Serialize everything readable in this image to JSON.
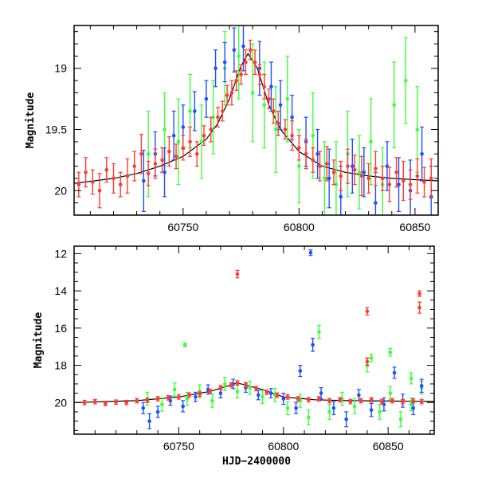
{
  "chart_data": [
    {
      "type": "scatter",
      "panel": "top",
      "title": "",
      "xlabel": "",
      "ylabel": "Magnitude",
      "xlim": [
        60703,
        60860
      ],
      "ylim": [
        20.2,
        18.65
      ],
      "y_inverted": true,
      "x_ticks": [
        60750,
        60800,
        60850
      ],
      "y_ticks": [
        19,
        19.5,
        20
      ],
      "x_tick_labels": [
        "60750",
        "60800",
        "60850"
      ],
      "y_tick_labels": [
        "19",
        "19.5",
        "20"
      ],
      "grid": false,
      "legend": "none",
      "colors": {
        "red": "#ff3b30",
        "blue": "#1f4fff",
        "green": "#3dff3d",
        "model": "#000000"
      },
      "model_curve": {
        "x": [
          60703,
          60720,
          60730,
          60740,
          60750,
          60760,
          60765,
          60770,
          60775,
          60778,
          60782,
          60787,
          60792,
          60800,
          60810,
          60820,
          60830,
          60840,
          60850,
          60860
        ],
        "y": [
          19.94,
          19.9,
          19.86,
          19.8,
          19.72,
          19.58,
          19.45,
          19.25,
          18.98,
          18.88,
          19.0,
          19.3,
          19.5,
          19.68,
          19.8,
          19.85,
          19.88,
          19.9,
          19.91,
          19.92
        ]
      },
      "series": [
        {
          "color": "red",
          "x": [
            60705,
            60708,
            60711,
            60714,
            60717,
            60720,
            60723,
            60726,
            60729,
            60732,
            60735,
            60738,
            60741,
            60744,
            60747,
            60750,
            60753,
            60756,
            60759,
            60762,
            60765,
            60767,
            60769,
            60771,
            60773,
            60775,
            60777,
            60779,
            60781,
            60783,
            60785,
            60787,
            60789,
            60791,
            60794,
            60797,
            60800,
            60803,
            60806,
            60809,
            60812,
            60815,
            60818,
            60821,
            60824,
            60827,
            60830,
            60833,
            60836,
            60839,
            60842,
            60845,
            60848,
            60851,
            60854,
            60857
          ],
          "y": [
            19.95,
            19.85,
            19.93,
            20.0,
            19.83,
            19.9,
            19.95,
            19.88,
            19.8,
            19.7,
            19.86,
            19.78,
            19.75,
            19.68,
            19.72,
            19.65,
            19.6,
            19.7,
            19.55,
            19.5,
            19.4,
            19.35,
            19.22,
            19.2,
            19.1,
            19.05,
            18.95,
            18.85,
            18.95,
            19.05,
            19.15,
            19.25,
            19.35,
            19.45,
            19.5,
            19.55,
            19.65,
            19.7,
            19.75,
            19.8,
            19.78,
            19.85,
            19.88,
            19.8,
            19.83,
            19.88,
            19.9,
            19.82,
            19.9,
            19.95,
            19.85,
            19.92,
            19.95,
            19.88,
            19.93,
            19.9
          ],
          "err": [
            0.1,
            0.12,
            0.1,
            0.14,
            0.1,
            0.12,
            0.1,
            0.14,
            0.12,
            0.16,
            0.1,
            0.12,
            0.1,
            0.12,
            0.1,
            0.1,
            0.12,
            0.1,
            0.08,
            0.1,
            0.08,
            0.08,
            0.08,
            0.1,
            0.08,
            0.08,
            0.1,
            0.08,
            0.1,
            0.08,
            0.1,
            0.08,
            0.1,
            0.1,
            0.08,
            0.12,
            0.1,
            0.12,
            0.1,
            0.12,
            0.14,
            0.1,
            0.12,
            0.14,
            0.12,
            0.16,
            0.12,
            0.14,
            0.1,
            0.14,
            0.12,
            0.16,
            0.12,
            0.14,
            0.12,
            0.16
          ]
        },
        {
          "color": "blue",
          "x": [
            60733,
            60738,
            60742,
            60746,
            60750,
            60755,
            60760,
            60764,
            60768,
            60772,
            60776,
            60783,
            60788,
            60792,
            60797,
            60803,
            60808,
            60813,
            60818,
            60823,
            60828,
            60833,
            60838,
            60843,
            60848,
            60853,
            60857
          ],
          "y": [
            19.92,
            19.7,
            19.85,
            19.55,
            19.48,
            19.35,
            19.25,
            19.0,
            18.95,
            18.85,
            18.82,
            19.0,
            19.15,
            19.3,
            19.4,
            19.6,
            19.7,
            19.9,
            20.05,
            19.8,
            19.85,
            20.1,
            19.8,
            19.95,
            20.0,
            19.7,
            20.05
          ],
          "err": [
            0.25,
            0.18,
            0.2,
            0.2,
            0.18,
            0.16,
            0.15,
            0.15,
            0.16,
            0.18,
            0.2,
            0.22,
            0.2,
            0.2,
            0.18,
            0.2,
            0.2,
            0.24,
            0.25,
            0.22,
            0.2,
            0.25,
            0.2,
            0.22,
            0.25,
            0.22,
            0.25
          ]
        },
        {
          "color": "green",
          "x": [
            60735,
            60742,
            60748,
            60753,
            60758,
            60763,
            60768,
            60774,
            60780,
            60785,
            60790,
            60795,
            60800,
            60806,
            60811,
            60816,
            60821,
            60826,
            60831,
            60836,
            60841,
            60846,
            60851
          ],
          "y": [
            19.7,
            19.5,
            19.6,
            19.35,
            19.6,
            19.4,
            19.0,
            18.9,
            19.2,
            19.3,
            19.5,
            19.25,
            19.8,
            19.55,
            19.9,
            19.95,
            19.7,
            19.85,
            19.6,
            19.95,
            19.3,
            19.1,
            19.5
          ],
          "err": [
            0.35,
            0.3,
            0.35,
            0.3,
            0.3,
            0.3,
            0.3,
            0.35,
            0.4,
            0.35,
            0.35,
            0.35,
            0.3,
            0.35,
            0.3,
            0.35,
            0.35,
            0.3,
            0.35,
            0.3,
            0.35,
            0.35,
            0.35
          ]
        }
      ]
    },
    {
      "type": "scatter",
      "panel": "bottom",
      "title": "",
      "xlabel": "HJD−2400000",
      "ylabel": "Magnitude",
      "xlim": [
        60700,
        60872
      ],
      "ylim": [
        21.7,
        11.6
      ],
      "y_inverted": true,
      "x_ticks": [
        60750,
        60800,
        60850
      ],
      "y_ticks": [
        12,
        14,
        16,
        18,
        20
      ],
      "x_tick_labels": [
        "60750",
        "60800",
        "60850"
      ],
      "y_tick_labels": [
        "12",
        "14",
        "16",
        "18",
        "20"
      ],
      "grid": false,
      "legend": "none",
      "colors": {
        "red": "#ff3b30",
        "blue": "#1f4fff",
        "green": "#3dff3d",
        "model": "#000000"
      },
      "model_curve": {
        "x": [
          60700,
          60730,
          60750,
          60765,
          60778,
          60790,
          60800,
          60815,
          60830,
          60850,
          60872
        ],
        "y": [
          20.0,
          19.9,
          19.7,
          19.4,
          18.95,
          19.3,
          19.7,
          19.85,
          19.9,
          19.92,
          19.94
        ]
      },
      "series": [
        {
          "color": "red",
          "x": [
            60705,
            60710,
            60715,
            60720,
            60725,
            60730,
            60735,
            60740,
            60745,
            60750,
            60755,
            60760,
            60765,
            60770,
            60775,
            60778,
            60782,
            60787,
            60792,
            60797,
            60802,
            60807,
            60812,
            60817,
            60822,
            60827,
            60832,
            60837,
            60842,
            60847,
            60852,
            60857,
            60862,
            60866,
            60778,
            60840,
            60865,
            60865,
            60840
          ],
          "y": [
            20.0,
            19.95,
            20.05,
            19.98,
            20.0,
            19.9,
            19.88,
            19.8,
            19.75,
            19.7,
            19.6,
            19.55,
            19.4,
            19.2,
            19.05,
            18.95,
            19.05,
            19.25,
            19.45,
            19.6,
            19.7,
            19.8,
            19.85,
            19.8,
            19.9,
            19.85,
            19.95,
            19.9,
            19.85,
            19.95,
            19.9,
            19.95,
            19.9,
            19.95,
            13.1,
            15.1,
            14.15,
            14.9,
            17.8
          ],
          "err": [
            0.12,
            0.12,
            0.12,
            0.12,
            0.12,
            0.12,
            0.12,
            0.12,
            0.12,
            0.12,
            0.12,
            0.12,
            0.12,
            0.12,
            0.12,
            0.12,
            0.12,
            0.12,
            0.12,
            0.12,
            0.12,
            0.12,
            0.12,
            0.12,
            0.12,
            0.12,
            0.12,
            0.12,
            0.12,
            0.12,
            0.12,
            0.12,
            0.12,
            0.12,
            0.2,
            0.2,
            0.15,
            0.3,
            0.2
          ]
        },
        {
          "color": "blue",
          "x": [
            60733,
            60736,
            60740,
            60746,
            60752,
            60758,
            60764,
            60770,
            60776,
            60782,
            60788,
            60794,
            60800,
            60806,
            60808,
            60813,
            60814,
            60818,
            60824,
            60830,
            60836,
            60842,
            60848,
            60853,
            60857,
            60862,
            60866
          ],
          "y": [
            20.3,
            21.0,
            20.5,
            19.9,
            20.2,
            19.7,
            19.3,
            19.5,
            19.0,
            19.2,
            19.6,
            19.5,
            19.8,
            20.3,
            18.3,
            11.95,
            16.9,
            19.5,
            20.3,
            20.9,
            19.6,
            20.4,
            20.1,
            18.4,
            19.9,
            20.3,
            19.1
          ],
          "err": [
            0.3,
            0.4,
            0.3,
            0.25,
            0.3,
            0.25,
            0.25,
            0.25,
            0.25,
            0.25,
            0.25,
            0.25,
            0.3,
            0.3,
            0.3,
            0.15,
            0.35,
            0.3,
            0.35,
            0.4,
            0.3,
            0.35,
            0.35,
            0.3,
            0.35,
            0.35,
            0.35
          ]
        },
        {
          "color": "green",
          "x": [
            60735,
            60742,
            60748,
            60754,
            60760,
            60766,
            60772,
            60778,
            60784,
            60790,
            60796,
            60802,
            60808,
            60812,
            60817,
            60822,
            60828,
            60834,
            60840,
            60846,
            60851,
            60856,
            60861,
            60866,
            60753,
            60842,
            60851,
            60861
          ],
          "y": [
            19.8,
            20.1,
            19.3,
            19.8,
            19.4,
            19.9,
            19.0,
            19.4,
            19.2,
            19.7,
            19.6,
            20.3,
            19.9,
            20.8,
            16.2,
            20.5,
            19.8,
            20.2,
            18.0,
            20.5,
            19.5,
            20.9,
            20.1,
            19.2,
            16.9,
            17.6,
            17.3,
            18.7
          ],
          "err": [
            0.35,
            0.35,
            0.35,
            0.35,
            0.35,
            0.35,
            0.35,
            0.35,
            0.35,
            0.35,
            0.35,
            0.35,
            0.35,
            0.4,
            0.35,
            0.4,
            0.35,
            0.4,
            0.35,
            0.4,
            0.35,
            0.4,
            0.35,
            0.35,
            0.1,
            0.2,
            0.2,
            0.3
          ]
        }
      ]
    }
  ]
}
